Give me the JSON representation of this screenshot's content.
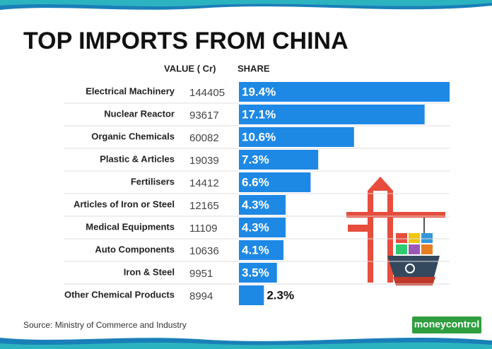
{
  "chart_data": {
    "type": "bar",
    "title": "TOP IMPORTS FROM CHINA",
    "value_header": "VALUE (  Cr)",
    "share_header": "SHARE",
    "categories": [
      "Electrical Machinery",
      "Nuclear Reactor",
      "Organic Chemicals",
      "Plastic & Articles",
      "Fertilisers",
      "Articles of Iron or Steel",
      "Medical Equipments",
      "Auto Components",
      "Iron & Steel",
      "Other Chemical Products"
    ],
    "import_values": [
      144405,
      93617,
      60082,
      19039,
      14412,
      12165,
      11109,
      10636,
      9951,
      8994
    ],
    "values": [
      19.4,
      17.1,
      10.6,
      7.3,
      6.6,
      4.3,
      4.3,
      4.1,
      3.5,
      2.3
    ],
    "value_labels": [
      "19.4%",
      "17.1%",
      "10.6%",
      "7.3%",
      "6.6%",
      "4.3%",
      "4.3%",
      "4.1%",
      "3.5%",
      "2.3%"
    ],
    "color": "#1e88e5"
  },
  "source": "Source: Ministry of Commerce and Industry",
  "brand": "moneycontrol"
}
